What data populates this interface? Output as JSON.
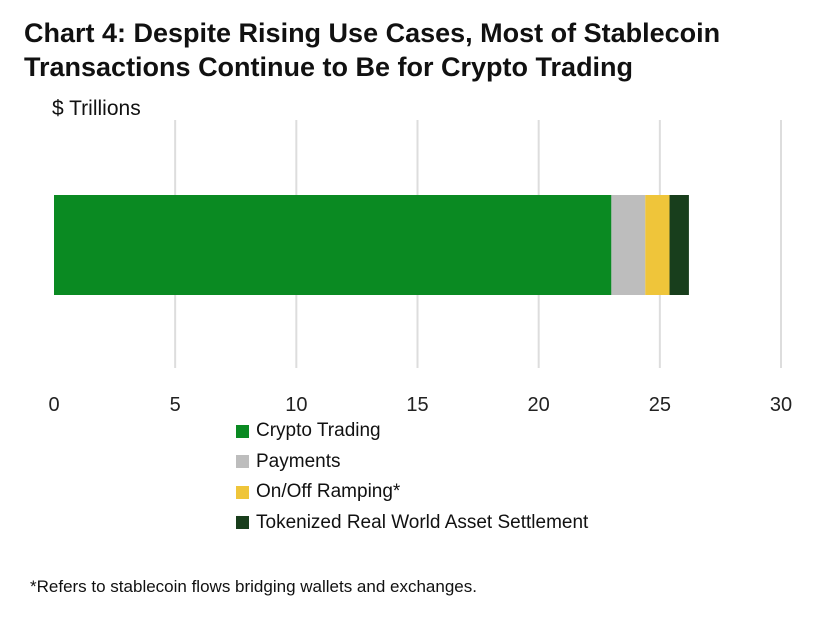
{
  "title_line1": "Chart 4: Despite Rising Use Cases, Most of Stablecoin",
  "title_line2": "Transactions Continue to Be for Crypto Trading",
  "footnote": "*Refers to stablecoin flows bridging wallets and exchanges.",
  "chart_data": {
    "type": "bar",
    "orientation": "horizontal",
    "stacked": true,
    "title": "Chart 4: Despite Rising Use Cases, Most of Stablecoin Transactions Continue to Be for Crypto Trading",
    "unit_label": "$ Trillions",
    "xlim": [
      0,
      30
    ],
    "xticks": [
      "0",
      "5",
      "10",
      "15",
      "20",
      "25",
      "30"
    ],
    "grid": true,
    "legend_position": "bottom",
    "series": [
      {
        "name": "Crypto Trading",
        "value": 23.0,
        "color": "#0a8a22"
      },
      {
        "name": "Payments",
        "value": 1.4,
        "color": "#bdbdbd"
      },
      {
        "name": "On/Off Ramping*",
        "value": 1.0,
        "color": "#efc53a"
      },
      {
        "name": "Tokenized Real World Asset Settlement",
        "value": 0.8,
        "color": "#183e1c"
      }
    ]
  }
}
